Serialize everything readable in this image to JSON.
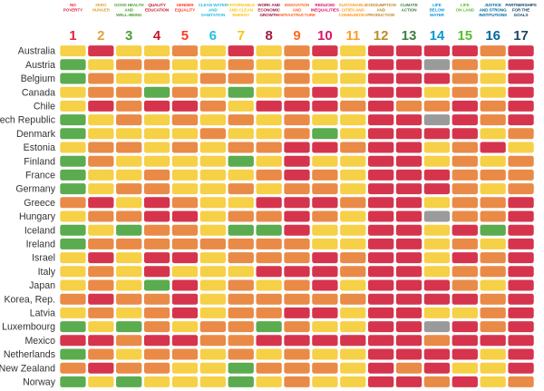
{
  "chart_data": {
    "type": "heatmap",
    "goals": [
      {
        "number": "1",
        "title": [
          "NO",
          "POVERTY"
        ],
        "color": "#e5243b"
      },
      {
        "number": "2",
        "title": [
          "ZERO",
          "HUNGER"
        ],
        "color": "#dda63a"
      },
      {
        "number": "3",
        "title": [
          "GOOD HEALTH",
          "AND",
          "WELL-BEING"
        ],
        "color": "#4c9f38"
      },
      {
        "number": "4",
        "title": [
          "QUALITY",
          "EDUCATION"
        ],
        "color": "#c5192d"
      },
      {
        "number": "5",
        "title": [
          "GENDER",
          "EQUALITY"
        ],
        "color": "#ff3a21"
      },
      {
        "number": "6",
        "title": [
          "CLEAN WATER",
          "AND",
          "SANITATION"
        ],
        "color": "#26bde2"
      },
      {
        "number": "7",
        "title": [
          "AFFORDABLE",
          "AND CLEAN",
          "ENERGY"
        ],
        "color": "#fcc30b"
      },
      {
        "number": "8",
        "title": [
          "WORK AND",
          "ECONOMIC",
          "GROWTH"
        ],
        "color": "#a21942"
      },
      {
        "number": "9",
        "title": [
          "INNOVATION",
          "AND",
          "INFRASTRUCTURE"
        ],
        "color": "#fd6925"
      },
      {
        "number": "10",
        "title": [
          "REDUCED",
          "INEQUALITIES"
        ],
        "color": "#dd1367"
      },
      {
        "number": "11",
        "title": [
          "SUSTAINABLE",
          "CITIES AND",
          "COMMUNITIES"
        ],
        "color": "#fd9d24"
      },
      {
        "number": "12",
        "title": [
          "CONSUMPTION",
          "AND",
          "PRODUCTION"
        ],
        "color": "#bf8b2e"
      },
      {
        "number": "13",
        "title": [
          "CLIMATE",
          "ACTION"
        ],
        "color": "#3f7e44"
      },
      {
        "number": "14",
        "title": [
          "LIFE",
          "BELOW",
          "WATER"
        ],
        "color": "#0a97d9"
      },
      {
        "number": "15",
        "title": [
          "LIFE",
          "ON LAND"
        ],
        "color": "#56c02b"
      },
      {
        "number": "16",
        "title": [
          "JUSTICE",
          "AND STRONG",
          "INSTITUTIONS"
        ],
        "color": "#00689d"
      },
      {
        "number": "17",
        "title": [
          "PARTNERSHIPS",
          "FOR THE",
          "GOALS"
        ],
        "color": "#19486a"
      }
    ],
    "status_colors": {
      "G": "#5bab4f",
      "Y": "#f6d046",
      "O": "#ea8a47",
      "R": "#d6344d",
      "N": "#9a9a9a"
    },
    "countries": [
      {
        "name": "Australia",
        "values": [
          "Y",
          "R",
          "Y",
          "Y",
          "O",
          "Y",
          "R",
          "Y",
          "O",
          "R",
          "Y",
          "R",
          "R",
          "R",
          "R",
          "O",
          "R"
        ]
      },
      {
        "name": "Austria",
        "values": [
          "G",
          "Y",
          "O",
          "O",
          "Y",
          "Y",
          "O",
          "Y",
          "O",
          "Y",
          "Y",
          "R",
          "R",
          "N",
          "O",
          "Y",
          "R"
        ]
      },
      {
        "name": "Belgium",
        "values": [
          "G",
          "O",
          "Y",
          "Y",
          "Y",
          "O",
          "O",
          "Y",
          "O",
          "Y",
          "Y",
          "R",
          "R",
          "R",
          "O",
          "Y",
          "R"
        ]
      },
      {
        "name": "Canada",
        "values": [
          "Y",
          "O",
          "O",
          "G",
          "O",
          "Y",
          "G",
          "Y",
          "O",
          "R",
          "Y",
          "R",
          "R",
          "Y",
          "O",
          "Y",
          "R"
        ]
      },
      {
        "name": "Chile",
        "values": [
          "Y",
          "R",
          "O",
          "R",
          "R",
          "O",
          "Y",
          "R",
          "R",
          "R",
          "O",
          "R",
          "O",
          "O",
          "R",
          "O",
          "R"
        ]
      },
      {
        "name": "Czech Republic",
        "values": [
          "G",
          "Y",
          "O",
          "Y",
          "O",
          "Y",
          "O",
          "Y",
          "O",
          "Y",
          "Y",
          "R",
          "R",
          "N",
          "R",
          "O",
          "R"
        ]
      },
      {
        "name": "Denmark",
        "values": [
          "G",
          "Y",
          "Y",
          "Y",
          "Y",
          "O",
          "Y",
          "Y",
          "O",
          "G",
          "Y",
          "R",
          "R",
          "R",
          "R",
          "Y",
          "O"
        ]
      },
      {
        "name": "Estonia",
        "values": [
          "Y",
          "O",
          "O",
          "Y",
          "O",
          "Y",
          "O",
          "O",
          "R",
          "R",
          "O",
          "R",
          "R",
          "Y",
          "O",
          "R",
          "Y"
        ]
      },
      {
        "name": "Finland",
        "values": [
          "G",
          "O",
          "Y",
          "Y",
          "Y",
          "Y",
          "G",
          "Y",
          "R",
          "Y",
          "Y",
          "R",
          "R",
          "Y",
          "O",
          "Y",
          "O"
        ]
      },
      {
        "name": "France",
        "values": [
          "G",
          "Y",
          "Y",
          "O",
          "Y",
          "Y",
          "Y",
          "O",
          "R",
          "O",
          "Y",
          "R",
          "R",
          "R",
          "O",
          "O",
          "O"
        ]
      },
      {
        "name": "Germany",
        "values": [
          "G",
          "Y",
          "O",
          "O",
          "Y",
          "Y",
          "O",
          "Y",
          "O",
          "O",
          "Y",
          "R",
          "R",
          "R",
          "O",
          "Y",
          "O"
        ]
      },
      {
        "name": "Greece",
        "values": [
          "O",
          "R",
          "Y",
          "R",
          "O",
          "Y",
          "Y",
          "R",
          "R",
          "R",
          "O",
          "R",
          "R",
          "Y",
          "O",
          "O",
          "R"
        ]
      },
      {
        "name": "Hungary",
        "values": [
          "Y",
          "O",
          "O",
          "R",
          "R",
          "Y",
          "O",
          "O",
          "R",
          "O",
          "Y",
          "R",
          "R",
          "N",
          "O",
          "O",
          "R"
        ]
      },
      {
        "name": "Iceland",
        "values": [
          "G",
          "Y",
          "G",
          "O",
          "O",
          "Y",
          "G",
          "G",
          "R",
          "Y",
          "Y",
          "R",
          "R",
          "Y",
          "R",
          "G",
          "R"
        ]
      },
      {
        "name": "Ireland",
        "values": [
          "G",
          "O",
          "O",
          "O",
          "O",
          "O",
          "O",
          "O",
          "O",
          "Y",
          "Y",
          "R",
          "R",
          "Y",
          "O",
          "Y",
          "R"
        ]
      },
      {
        "name": "Israel",
        "values": [
          "Y",
          "R",
          "Y",
          "R",
          "R",
          "Y",
          "O",
          "O",
          "O",
          "R",
          "O",
          "R",
          "R",
          "Y",
          "R",
          "O",
          "R"
        ]
      },
      {
        "name": "Italy",
        "values": [
          "Y",
          "O",
          "Y",
          "R",
          "Y",
          "Y",
          "Y",
          "R",
          "R",
          "R",
          "O",
          "R",
          "R",
          "Y",
          "O",
          "O",
          "R"
        ]
      },
      {
        "name": "Japan",
        "values": [
          "Y",
          "O",
          "Y",
          "G",
          "R",
          "Y",
          "O",
          "Y",
          "O",
          "R",
          "Y",
          "R",
          "R",
          "R",
          "O",
          "Y",
          "R"
        ]
      },
      {
        "name": "Korea, Rep.",
        "values": [
          "O",
          "R",
          "O",
          "O",
          "R",
          "Y",
          "O",
          "O",
          "O",
          "O",
          "O",
          "R",
          "R",
          "R",
          "R",
          "O",
          "R"
        ]
      },
      {
        "name": "Latvia",
        "values": [
          "Y",
          "O",
          "Y",
          "O",
          "R",
          "Y",
          "O",
          "O",
          "R",
          "R",
          "Y",
          "R",
          "R",
          "Y",
          "Y",
          "O",
          "R"
        ]
      },
      {
        "name": "Luxembourg",
        "values": [
          "G",
          "Y",
          "G",
          "O",
          "Y",
          "O",
          "O",
          "G",
          "O",
          "Y",
          "Y",
          "R",
          "R",
          "N",
          "R",
          "O",
          "R"
        ]
      },
      {
        "name": "Mexico",
        "values": [
          "R",
          "R",
          "O",
          "R",
          "R",
          "O",
          "O",
          "R",
          "R",
          "R",
          "R",
          "R",
          "R",
          "O",
          "R",
          "R",
          "R"
        ]
      },
      {
        "name": "Netherlands",
        "values": [
          "G",
          "O",
          "Y",
          "O",
          "O",
          "Y",
          "O",
          "Y",
          "O",
          "Y",
          "Y",
          "R",
          "R",
          "R",
          "R",
          "Y",
          "R"
        ]
      },
      {
        "name": "New Zealand",
        "values": [
          "O",
          "R",
          "O",
          "O",
          "Y",
          "Y",
          "G",
          "O",
          "O",
          "O",
          "Y",
          "R",
          "O",
          "R",
          "Y",
          "Y",
          "R"
        ]
      },
      {
        "name": "Norway",
        "values": [
          "G",
          "Y",
          "G",
          "Y",
          "Y",
          "Y",
          "G",
          "Y",
          "O",
          "Y",
          "Y",
          "R",
          "R",
          "O",
          "R",
          "Y",
          "O"
        ]
      }
    ]
  }
}
